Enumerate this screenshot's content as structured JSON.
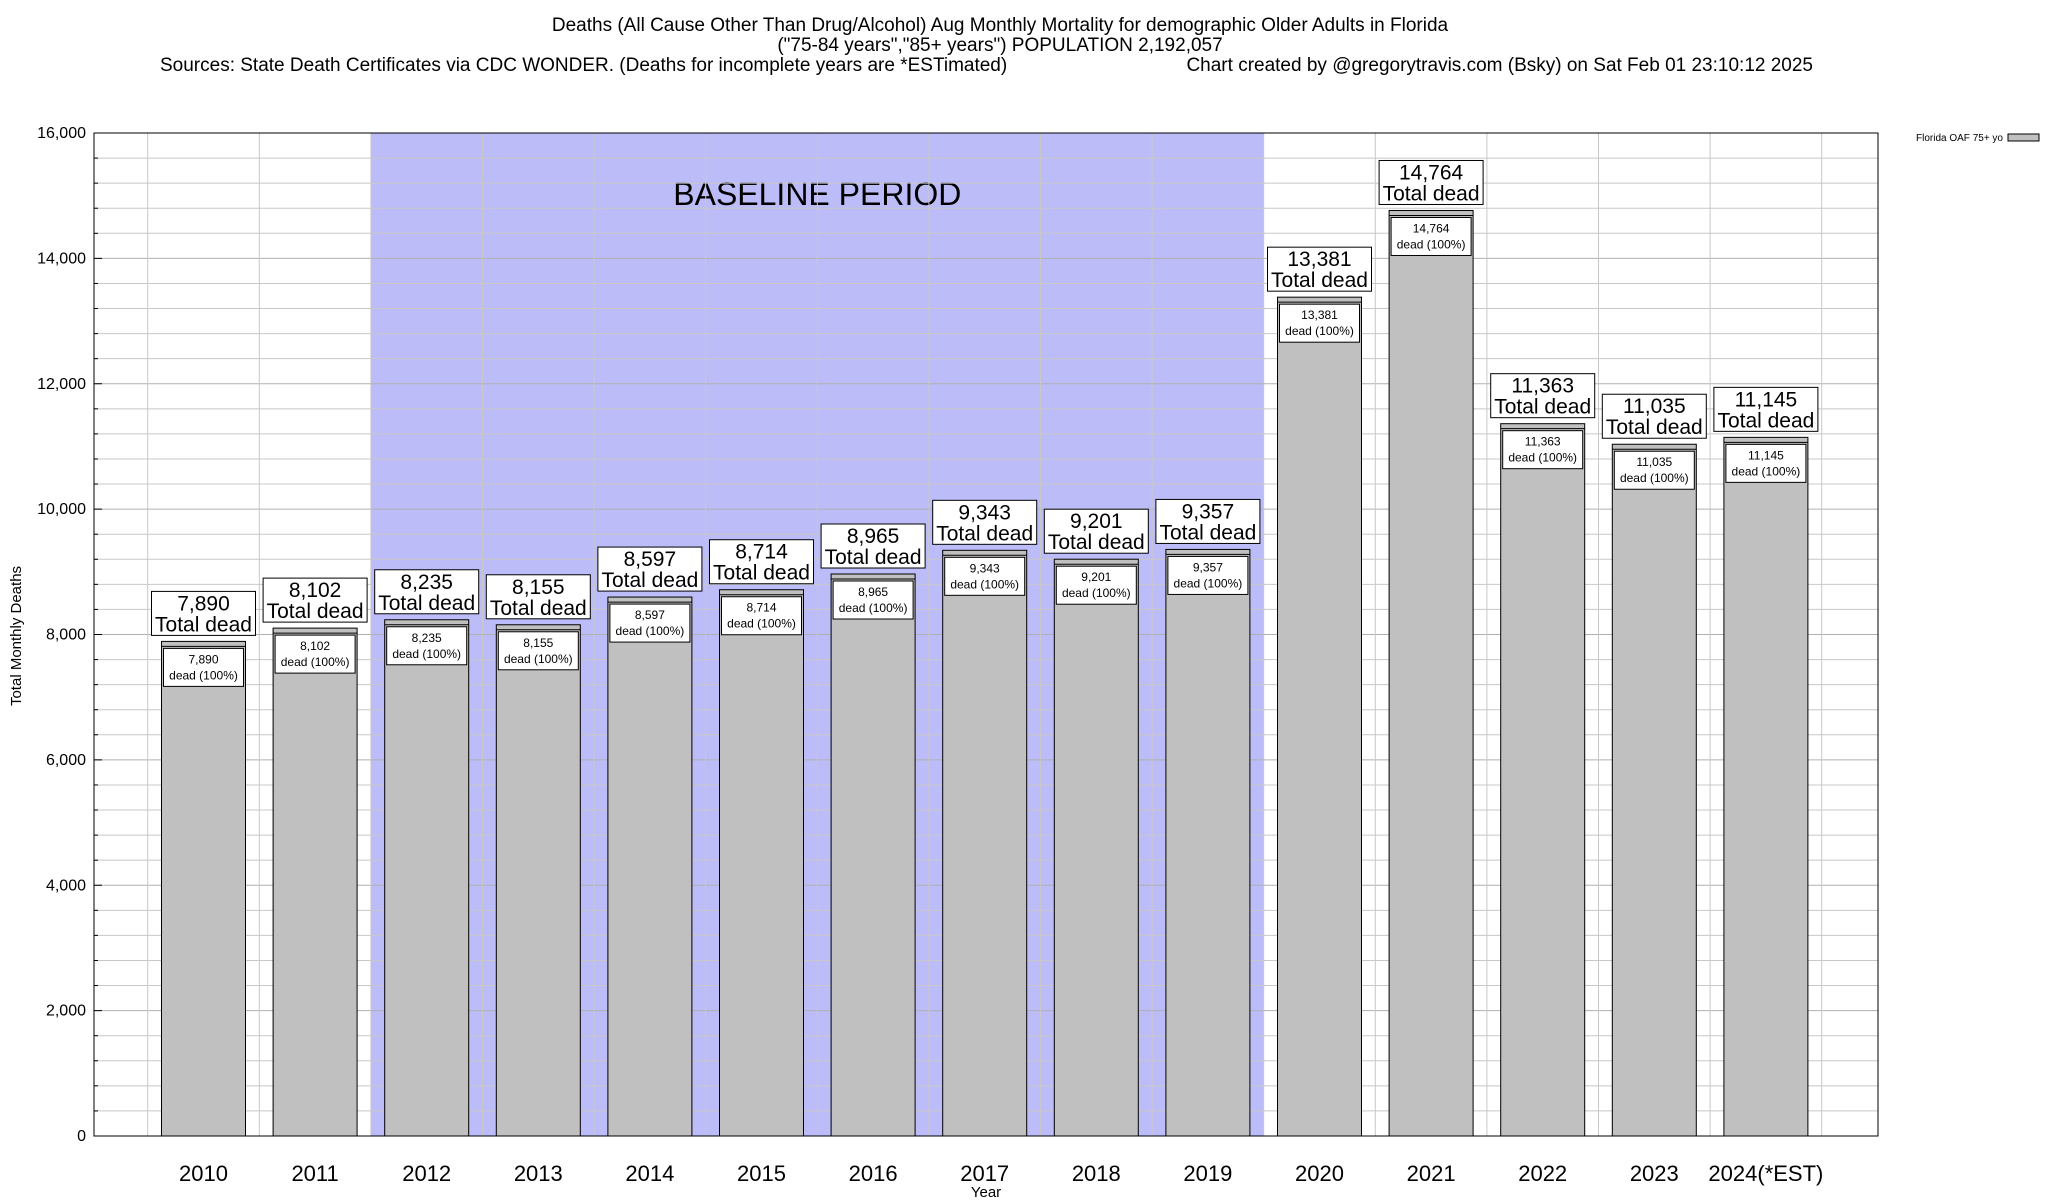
{
  "chart_data": {
    "type": "bar",
    "title": "Deaths (All Cause Other Than Drug/Alcohol) Aug Monthly Mortality for demographic Older Adults in Florida",
    "subtitle": "(\"75-84 years\",\"85+ years\") POPULATION 2,192,057",
    "sources": "Sources: State Death Certificates via CDC WONDER. (Deaths for incomplete years are *ESTimated)",
    "credit": "Chart created by @gregorytravis.com (Bsky) on Sat Feb 01 23:10:12 2025",
    "xlabel": "Year",
    "ylabel": "Total Monthly Deaths",
    "ylim": [
      0,
      16000
    ],
    "yticks": [
      0,
      2000,
      4000,
      6000,
      8000,
      10000,
      12000,
      14000,
      16000
    ],
    "ytick_labels": [
      "0",
      "2,000",
      "4,000",
      "6,000",
      "8,000",
      "10,000",
      "12,000",
      "14,000",
      "16,000"
    ],
    "minor_grid_step": 400,
    "grid": true,
    "categories": [
      "2010",
      "2011",
      "2012",
      "2013",
      "2014",
      "2015",
      "2016",
      "2017",
      "2018",
      "2019",
      "2020",
      "2021",
      "2022",
      "2023",
      "2024(*EST)"
    ],
    "series": [
      {
        "name": "Florida OAF 75+ yo",
        "values": [
          7890,
          8102,
          8235,
          8155,
          8597,
          8714,
          8965,
          9343,
          9201,
          9357,
          13381,
          14764,
          11363,
          11035,
          11145
        ],
        "color": "#c0c0c0"
      }
    ],
    "value_labels": [
      "7,890",
      "8,102",
      "8,235",
      "8,155",
      "8,597",
      "8,714",
      "8,965",
      "9,343",
      "9,201",
      "9,357",
      "13,381",
      "14,764",
      "11,363",
      "11,035",
      "11,145"
    ],
    "total_label": "Total dead",
    "inner_label": "dead (100%)",
    "baseline": {
      "label": "BASELINE PERIOD",
      "from_category": "2012",
      "to_category": "2019",
      "color": "#bcbcf8"
    },
    "legend": {
      "placement": "top-right",
      "label": "Florida OAF 75+ yo"
    }
  }
}
